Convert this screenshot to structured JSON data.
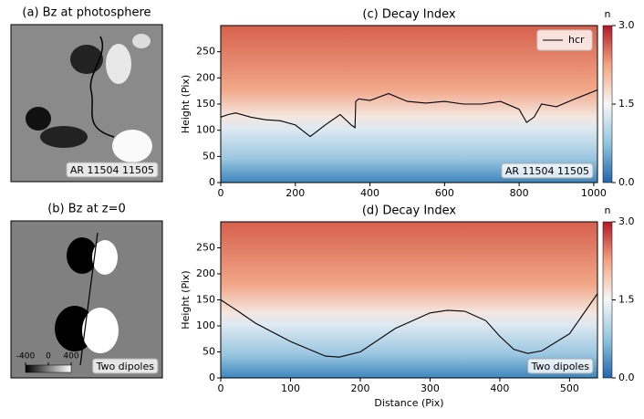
{
  "chart_data": [
    {
      "type": "image",
      "title": "(a) Bz at photosphere",
      "annotation": "AR 11504 11505"
    },
    {
      "type": "image",
      "title": "(b) Bz at z=0",
      "annotation": "Two dipoles",
      "colorbar_ticks": [
        -400,
        0,
        400
      ]
    },
    {
      "type": "heatmap",
      "title": "(c) Decay Index",
      "ylabel": "Height (Pix)",
      "annotation": "AR 11504 11505",
      "xlim": [
        0,
        1010
      ],
      "ylim": [
        0,
        300
      ],
      "xticks": [
        0,
        200,
        400,
        600,
        800,
        1000
      ],
      "yticks": [
        0,
        50,
        100,
        150,
        200,
        250
      ],
      "colorbar_label": "n",
      "clim": [
        0,
        3
      ],
      "cticks": [
        {
          "value": 0,
          "label": "0.0"
        },
        {
          "value": 1.5,
          "label": "1.5"
        },
        {
          "value": 3,
          "label": "3.0"
        }
      ],
      "legend": "upper right",
      "series": [
        {
          "name": "hcr",
          "color": "#000000",
          "x": [
            0,
            20,
            40,
            80,
            120,
            160,
            200,
            240,
            280,
            320,
            350,
            360,
            362,
            370,
            400,
            450,
            500,
            550,
            600,
            650,
            700,
            750,
            800,
            820,
            840,
            860,
            900,
            950,
            1010
          ],
          "values": [
            125,
            130,
            133,
            125,
            120,
            118,
            110,
            88,
            110,
            130,
            110,
            105,
            155,
            160,
            157,
            170,
            155,
            152,
            155,
            150,
            150,
            155,
            140,
            115,
            125,
            150,
            145,
            160,
            177
          ]
        }
      ]
    },
    {
      "type": "heatmap",
      "title": "(d) Decay Index",
      "ylabel": "Height (Pix)",
      "xlabel": "Distance (Pix)",
      "annotation": "Two dipoles",
      "xlim": [
        0,
        540
      ],
      "ylim": [
        0,
        300
      ],
      "xticks": [
        0,
        100,
        200,
        300,
        400,
        500
      ],
      "yticks": [
        0,
        50,
        100,
        150,
        200,
        250
      ],
      "colorbar_label": "n",
      "clim": [
        0,
        3
      ],
      "cticks": [
        {
          "value": 0,
          "label": "0.0"
        },
        {
          "value": 1.5,
          "label": "1.5"
        },
        {
          "value": 3,
          "label": "3.0"
        }
      ],
      "series": [
        {
          "color": "#000000",
          "x": [
            0,
            25,
            50,
            100,
            150,
            170,
            200,
            250,
            300,
            325,
            350,
            380,
            400,
            420,
            440,
            460,
            500,
            540
          ],
          "values": [
            150,
            128,
            105,
            70,
            42,
            40,
            50,
            95,
            125,
            130,
            128,
            110,
            80,
            55,
            47,
            52,
            85,
            162
          ]
        }
      ]
    }
  ]
}
